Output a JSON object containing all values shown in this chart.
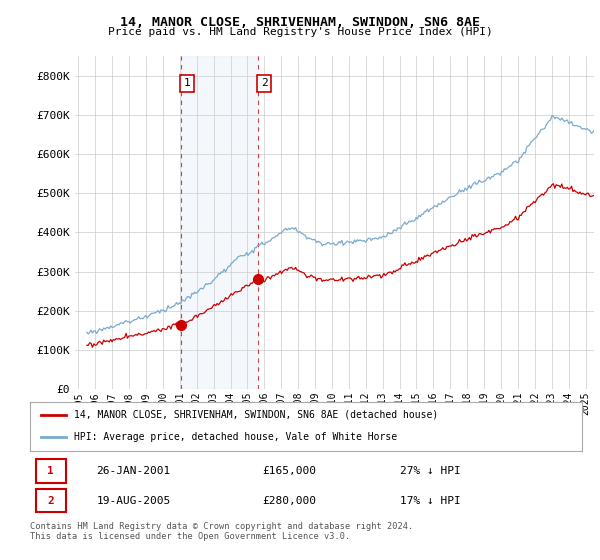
{
  "title": "14, MANOR CLOSE, SHRIVENHAM, SWINDON, SN6 8AE",
  "subtitle": "Price paid vs. HM Land Registry's House Price Index (HPI)",
  "legend_label_red": "14, MANOR CLOSE, SHRIVENHAM, SWINDON, SN6 8AE (detached house)",
  "legend_label_blue": "HPI: Average price, detached house, Vale of White Horse",
  "footnote": "Contains HM Land Registry data © Crown copyright and database right 2024.\nThis data is licensed under the Open Government Licence v3.0.",
  "transaction1_date": "26-JAN-2001",
  "transaction1_price": "£165,000",
  "transaction1_hpi": "27% ↓ HPI",
  "transaction2_date": "19-AUG-2005",
  "transaction2_price": "£280,000",
  "transaction2_hpi": "17% ↓ HPI",
  "background_color": "#ffffff",
  "plot_bg_color": "#ffffff",
  "grid_color": "#cccccc",
  "red_color": "#cc0000",
  "blue_color": "#7aabcf",
  "shade_color": "#ddeeff",
  "ylim": [
    0,
    850000
  ],
  "yticks": [
    0,
    100000,
    200000,
    300000,
    400000,
    500000,
    600000,
    700000,
    800000
  ],
  "ytick_labels": [
    "£0",
    "£100K",
    "£200K",
    "£300K",
    "£400K",
    "£500K",
    "£600K",
    "£700K",
    "£800K"
  ],
  "transaction1_x": 2001.07,
  "transaction1_y": 165000,
  "transaction2_x": 2005.64,
  "transaction2_y": 280000,
  "vline1_x": 2001.07,
  "vline2_x": 2005.64,
  "xmin": 1995.5,
  "xmax": 2025.3
}
